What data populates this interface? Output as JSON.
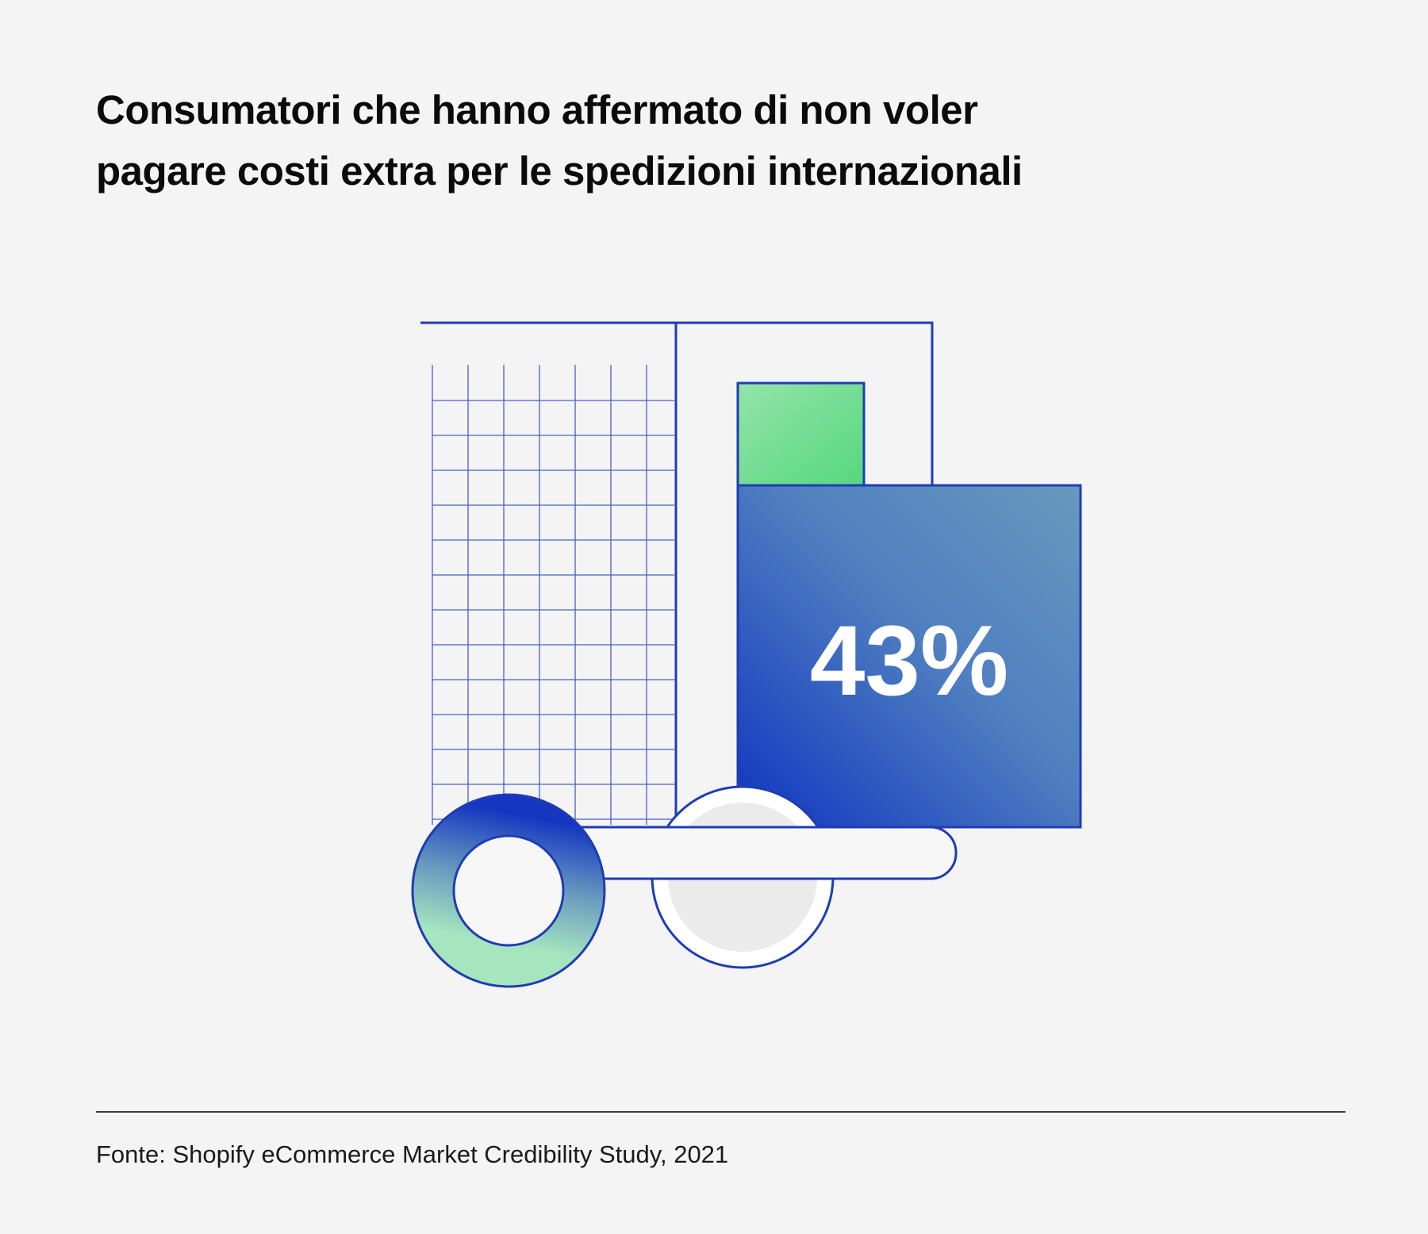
{
  "title": "Consumatori che hanno affermato di non voler pagare costi extra per le spedizioni internazionali",
  "stat": {
    "value": "43%",
    "percent": 43
  },
  "source": "Fonte: Shopify eCommerce Market Credibility Study, 2021",
  "colors": {
    "primary_blue": "#1a3bbf",
    "light_blue": "#6596bd",
    "green": "#5cd882",
    "background": "#f4f4f5"
  }
}
